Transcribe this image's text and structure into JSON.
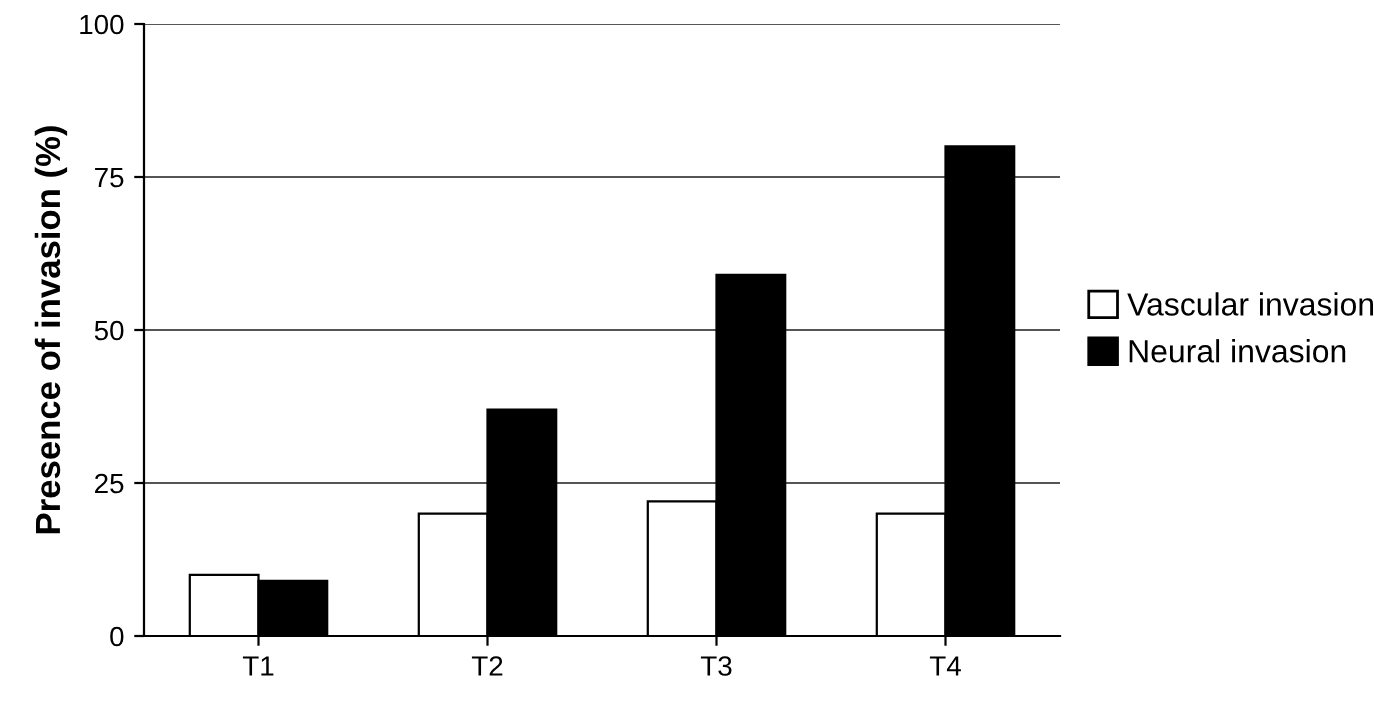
{
  "chart_data": {
    "type": "bar",
    "ylabel": "Presence of invasion (%)",
    "categories": [
      "T1",
      "T2",
      "T3",
      "T4"
    ],
    "series": [
      {
        "name": "Vascular invasion",
        "color": "#ffffff",
        "values": [
          10,
          20,
          22,
          20
        ]
      },
      {
        "name": "Neural invasion",
        "color": "#000000",
        "values": [
          9,
          37,
          59,
          80
        ]
      }
    ],
    "ylim": [
      0,
      100
    ],
    "yticks": [
      0,
      25,
      50,
      75,
      100
    ],
    "grid": "y",
    "legend": "right"
  }
}
